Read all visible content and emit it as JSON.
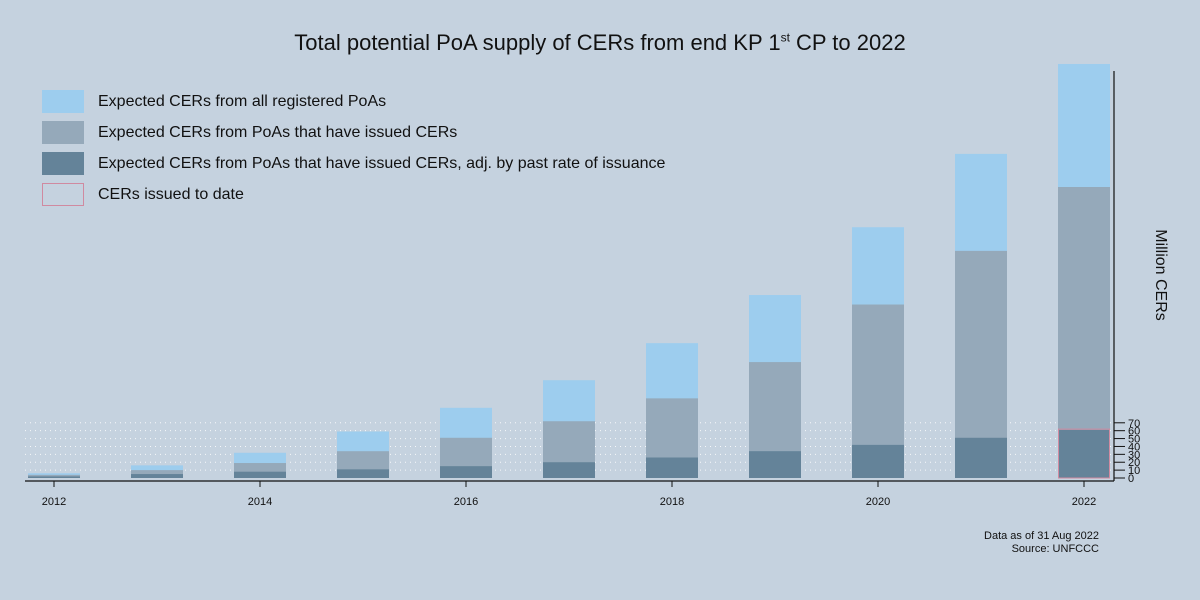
{
  "chart_data": {
    "type": "bar",
    "title_main": "Total potential PoA supply of CERs from end KP 1",
    "title_sup": "st",
    "title_end": " CP to 2022",
    "ylabel": "Million CERs",
    "x": [
      2012,
      2013,
      2014,
      2015,
      2016,
      2017,
      2018,
      2019,
      2020,
      2021,
      2022
    ],
    "xticks": [
      "2012",
      "2014",
      "2016",
      "2018",
      "2020",
      "2022"
    ],
    "yticks": [
      "0",
      "10",
      "20",
      "30",
      "40",
      "50",
      "60",
      "70"
    ],
    "series": [
      {
        "name": "Expected CERs from all registered PoAs",
        "color": "#9dcdee",
        "values": [
          6,
          16,
          32,
          59,
          89,
          124,
          171,
          232,
          318,
          411,
          525
        ]
      },
      {
        "name": "Expected CERs from PoAs that have issued CERs",
        "color": "#95a9ba",
        "values": [
          4,
          10,
          19,
          34,
          51,
          72,
          101,
          147,
          220,
          288,
          369
        ]
      },
      {
        "name": "Expected CERs from PoAs that have issued CERs, adj. by past rate of issuance",
        "color": "#648399",
        "values": [
          2,
          5,
          8,
          11,
          15,
          20,
          26,
          34,
          42,
          51,
          61
        ]
      },
      {
        "name": "CERs issued to date",
        "color": "#d08aa0",
        "values": [
          null,
          null,
          null,
          null,
          null,
          null,
          null,
          null,
          null,
          null,
          62
        ]
      }
    ]
  },
  "footnote": {
    "line1": "Data as of 31 Aug 2022",
    "line2": "Source: UNFCCC"
  }
}
